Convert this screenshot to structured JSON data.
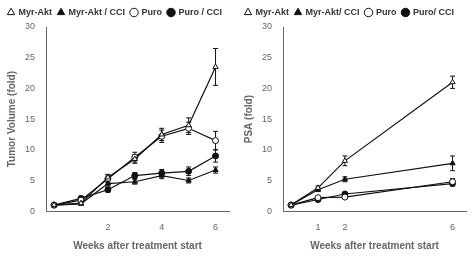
{
  "chart_data": [
    {
      "type": "line",
      "xlabel": "Weeks after treatment start",
      "ylabel": "Tumor Volume (fold)",
      "xlim": [
        -0.3,
        6.5
      ],
      "xticks": [
        2,
        4,
        6
      ],
      "ylim": [
        0,
        30
      ],
      "yticks": [
        0,
        5,
        10,
        15,
        20,
        25,
        30
      ],
      "grid": false,
      "legend": "upper left",
      "color": "#111111",
      "series": [
        {
          "name": "Myr-Akt",
          "x": [
            0,
            1,
            2,
            3,
            4,
            5,
            6
          ],
          "values": [
            1.0,
            1.3,
            5.5,
            8.5,
            12.5,
            14.0,
            23.5
          ],
          "yerr": [
            0.1,
            0.2,
            0.5,
            0.7,
            1.0,
            1.2,
            3.0
          ],
          "marker": "triangle_open"
        },
        {
          "name": "Myr-Akt / CCI",
          "x": [
            0,
            1,
            2,
            3,
            4,
            5,
            6
          ],
          "values": [
            1.0,
            1.2,
            4.5,
            4.8,
            5.8,
            5.0,
            6.7
          ],
          "yerr": [
            0.1,
            0.1,
            0.4,
            0.4,
            0.5,
            0.4,
            0.5
          ],
          "marker": "triangle"
        },
        {
          "name": "Puro",
          "x": [
            0,
            1,
            2,
            3,
            4,
            5,
            6
          ],
          "values": [
            1.0,
            1.8,
            5.3,
            8.8,
            12.2,
            13.5,
            11.5
          ],
          "yerr": [
            0.1,
            0.3,
            0.6,
            0.8,
            1.0,
            1.0,
            1.5
          ],
          "marker": "circle_open"
        },
        {
          "name": "Puro / CCI",
          "x": [
            0,
            1,
            2,
            3,
            4,
            5,
            6
          ],
          "values": [
            1.0,
            2.1,
            3.5,
            5.8,
            6.2,
            6.5,
            9.0
          ],
          "yerr": [
            0.1,
            0.3,
            0.4,
            0.5,
            0.6,
            0.7,
            1.0
          ],
          "marker": "circle"
        }
      ]
    },
    {
      "type": "line",
      "xlabel": "Weeks after treatment start",
      "ylabel": "PSA (fold)",
      "xlim": [
        -0.3,
        6.5
      ],
      "xticks": [
        1,
        2,
        6
      ],
      "ylim": [
        0,
        30
      ],
      "yticks": [
        0,
        5,
        10,
        15,
        20,
        25,
        30
      ],
      "grid": false,
      "legend": "upper left",
      "color": "#111111",
      "series": [
        {
          "name": "Myr-Akt",
          "x": [
            0,
            1,
            2,
            6
          ],
          "values": [
            1.0,
            3.8,
            8.2,
            21.0
          ],
          "yerr": [
            0.1,
            0.3,
            0.8,
            1.0
          ],
          "marker": "triangle_open"
        },
        {
          "name": "Myr-Akt/ CCI",
          "x": [
            0,
            1,
            2,
            6
          ],
          "values": [
            1.0,
            3.5,
            5.2,
            7.8
          ],
          "yerr": [
            0.1,
            0.3,
            0.4,
            1.2
          ],
          "marker": "triangle"
        },
        {
          "name": "Puro",
          "x": [
            0,
            1,
            2,
            6
          ],
          "values": [
            1.0,
            2.2,
            2.3,
            4.8
          ],
          "yerr": [
            0.1,
            0.2,
            0.2,
            0.5
          ],
          "marker": "circle_open"
        },
        {
          "name": "Puro/ CCI",
          "x": [
            0,
            1,
            2,
            6
          ],
          "values": [
            1.0,
            1.9,
            2.8,
            4.5
          ],
          "yerr": [
            0.1,
            0.1,
            0.2,
            0.4
          ],
          "marker": "circle"
        }
      ]
    }
  ]
}
